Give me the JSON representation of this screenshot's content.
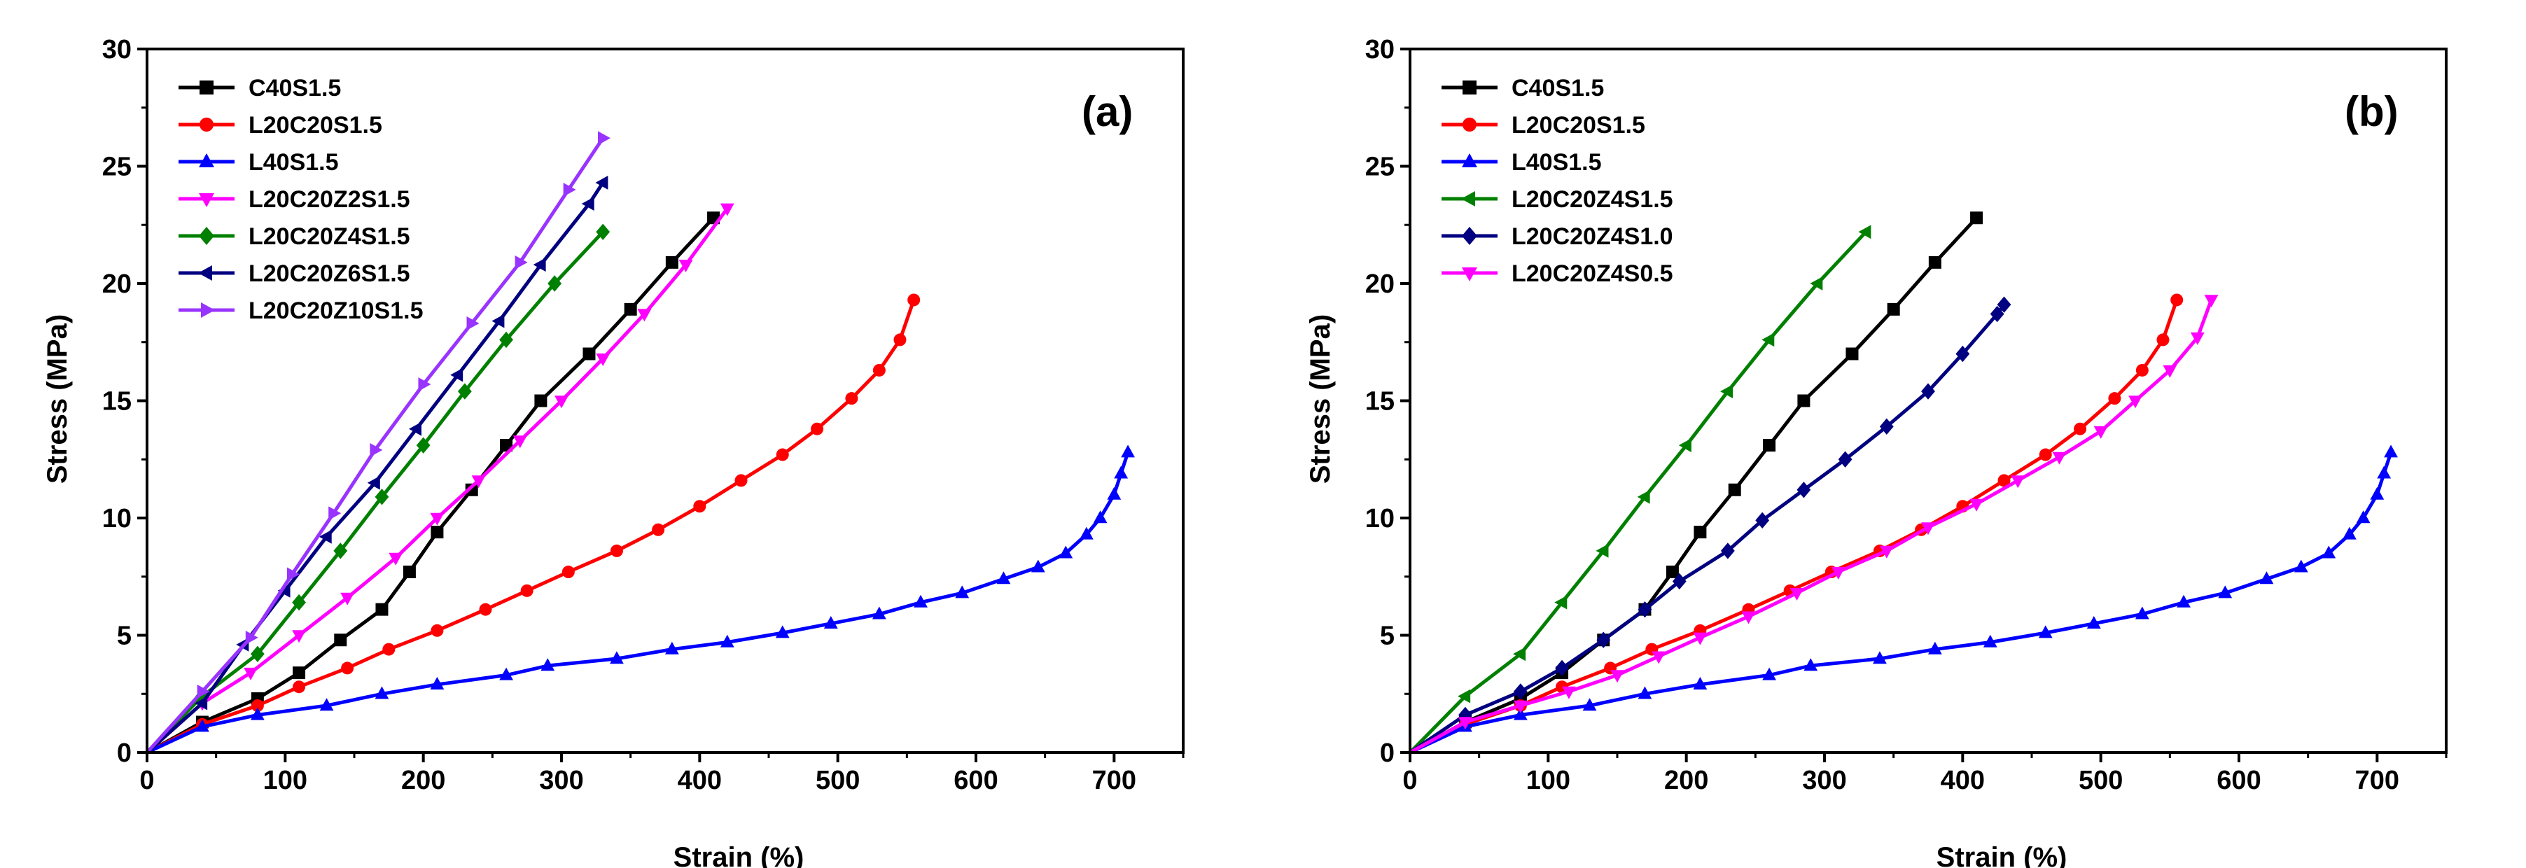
{
  "chart_data": [
    {
      "type": "line",
      "panel_label": "(a)",
      "xlabel": "Strain (%)",
      "ylabel": "Stress (MPa)",
      "xlim": [
        0,
        750
      ],
      "ylim": [
        0,
        30
      ],
      "xticks": [
        0,
        100,
        200,
        300,
        400,
        500,
        600,
        700
      ],
      "yticks": [
        0,
        5,
        10,
        15,
        20,
        25,
        30
      ],
      "legend_position": "top-left",
      "series": [
        {
          "name": "C40S1.5",
          "color": "#000000",
          "marker": "square",
          "points": [
            [
              0,
              0
            ],
            [
              40,
              1.3
            ],
            [
              80,
              2.3
            ],
            [
              110,
              3.4
            ],
            [
              140,
              4.8
            ],
            [
              170,
              6.1
            ],
            [
              190,
              7.7
            ],
            [
              210,
              9.4
            ],
            [
              235,
              11.2
            ],
            [
              260,
              13.1
            ],
            [
              285,
              15.0
            ],
            [
              320,
              17.0
            ],
            [
              350,
              18.9
            ],
            [
              380,
              20.9
            ],
            [
              410,
              22.8
            ]
          ]
        },
        {
          "name": "L20C20S1.5",
          "color": "#ff0000",
          "marker": "circle",
          "points": [
            [
              0,
              0
            ],
            [
              40,
              1.2
            ],
            [
              80,
              2.0
            ],
            [
              110,
              2.8
            ],
            [
              145,
              3.6
            ],
            [
              175,
              4.4
            ],
            [
              210,
              5.2
            ],
            [
              245,
              6.1
            ],
            [
              275,
              6.9
            ],
            [
              305,
              7.7
            ],
            [
              340,
              8.6
            ],
            [
              370,
              9.5
            ],
            [
              400,
              10.5
            ],
            [
              430,
              11.6
            ],
            [
              460,
              12.7
            ],
            [
              485,
              13.8
            ],
            [
              510,
              15.1
            ],
            [
              530,
              16.3
            ],
            [
              545,
              17.6
            ],
            [
              555,
              19.3
            ]
          ]
        },
        {
          "name": "L40S1.5",
          "color": "#0000ff",
          "marker": "triangle-up",
          "points": [
            [
              0,
              0
            ],
            [
              40,
              1.1
            ],
            [
              80,
              1.6
            ],
            [
              130,
              2.0
            ],
            [
              170,
              2.5
            ],
            [
              210,
              2.9
            ],
            [
              260,
              3.3
            ],
            [
              290,
              3.7
            ],
            [
              340,
              4.0
            ],
            [
              380,
              4.4
            ],
            [
              420,
              4.7
            ],
            [
              460,
              5.1
            ],
            [
              495,
              5.5
            ],
            [
              530,
              5.9
            ],
            [
              560,
              6.4
            ],
            [
              590,
              6.8
            ],
            [
              620,
              7.4
            ],
            [
              645,
              7.9
            ],
            [
              665,
              8.5
            ],
            [
              680,
              9.3
            ],
            [
              690,
              10.0
            ],
            [
              700,
              11.0
            ],
            [
              705,
              11.9
            ],
            [
              710,
              12.8
            ]
          ]
        },
        {
          "name": "L20C20Z2S1.5",
          "color": "#ff00ff",
          "marker": "triangle-down",
          "points": [
            [
              0,
              0
            ],
            [
              40,
              2.1
            ],
            [
              75,
              3.4
            ],
            [
              110,
              5.0
            ],
            [
              145,
              6.6
            ],
            [
              180,
              8.3
            ],
            [
              210,
              10.0
            ],
            [
              240,
              11.6
            ],
            [
              270,
              13.3
            ],
            [
              300,
              15.0
            ],
            [
              330,
              16.8
            ],
            [
              360,
              18.7
            ],
            [
              390,
              20.8
            ],
            [
              420,
              23.2
            ]
          ]
        },
        {
          "name": "L20C20Z4S1.5",
          "color": "#008000",
          "marker": "diamond",
          "points": [
            [
              0,
              0
            ],
            [
              40,
              2.4
            ],
            [
              80,
              4.2
            ],
            [
              110,
              6.4
            ],
            [
              140,
              8.6
            ],
            [
              170,
              10.9
            ],
            [
              200,
              13.1
            ],
            [
              230,
              15.4
            ],
            [
              260,
              17.6
            ],
            [
              295,
              20.0
            ],
            [
              330,
              22.2
            ]
          ]
        },
        {
          "name": "L20C20Z6S1.5",
          "color": "#000080",
          "marker": "triangle-left",
          "points": [
            [
              0,
              0
            ],
            [
              40,
              2.1
            ],
            [
              70,
              4.6
            ],
            [
              100,
              6.9
            ],
            [
              130,
              9.2
            ],
            [
              165,
              11.5
            ],
            [
              195,
              13.8
            ],
            [
              225,
              16.1
            ],
            [
              255,
              18.4
            ],
            [
              285,
              20.8
            ],
            [
              320,
              23.4
            ],
            [
              330,
              24.3
            ]
          ]
        },
        {
          "name": "L20C20Z10S1.5",
          "color": "#9933ff",
          "marker": "triangle-right",
          "points": [
            [
              0,
              0
            ],
            [
              40,
              2.6
            ],
            [
              75,
              4.9
            ],
            [
              105,
              7.6
            ],
            [
              135,
              10.2
            ],
            [
              165,
              12.9
            ],
            [
              200,
              15.7
            ],
            [
              235,
              18.3
            ],
            [
              270,
              20.9
            ],
            [
              305,
              24.0
            ],
            [
              330,
              26.2
            ]
          ]
        }
      ]
    },
    {
      "type": "line",
      "panel_label": "(b)",
      "xlabel": "Strain (%)",
      "ylabel": "Stress (MPa)",
      "xlim": [
        0,
        750
      ],
      "ylim": [
        0,
        30
      ],
      "xticks": [
        0,
        100,
        200,
        300,
        400,
        500,
        600,
        700
      ],
      "yticks": [
        0,
        5,
        10,
        15,
        20,
        25,
        30
      ],
      "legend_position": "top-left",
      "series": [
        {
          "name": "C40S1.5",
          "color": "#000000",
          "marker": "square",
          "points": [
            [
              0,
              0
            ],
            [
              40,
              1.3
            ],
            [
              80,
              2.3
            ],
            [
              110,
              3.4
            ],
            [
              140,
              4.8
            ],
            [
              170,
              6.1
            ],
            [
              190,
              7.7
            ],
            [
              210,
              9.4
            ],
            [
              235,
              11.2
            ],
            [
              260,
              13.1
            ],
            [
              285,
              15.0
            ],
            [
              320,
              17.0
            ],
            [
              350,
              18.9
            ],
            [
              380,
              20.9
            ],
            [
              410,
              22.8
            ]
          ]
        },
        {
          "name": "L20C20S1.5",
          "color": "#ff0000",
          "marker": "circle",
          "points": [
            [
              0,
              0
            ],
            [
              40,
              1.2
            ],
            [
              80,
              2.0
            ],
            [
              110,
              2.8
            ],
            [
              145,
              3.6
            ],
            [
              175,
              4.4
            ],
            [
              210,
              5.2
            ],
            [
              245,
              6.1
            ],
            [
              275,
              6.9
            ],
            [
              305,
              7.7
            ],
            [
              340,
              8.6
            ],
            [
              370,
              9.5
            ],
            [
              400,
              10.5
            ],
            [
              430,
              11.6
            ],
            [
              460,
              12.7
            ],
            [
              485,
              13.8
            ],
            [
              510,
              15.1
            ],
            [
              530,
              16.3
            ],
            [
              545,
              17.6
            ],
            [
              555,
              19.3
            ]
          ]
        },
        {
          "name": "L40S1.5",
          "color": "#0000ff",
          "marker": "triangle-up",
          "points": [
            [
              0,
              0
            ],
            [
              40,
              1.1
            ],
            [
              80,
              1.6
            ],
            [
              130,
              2.0
            ],
            [
              170,
              2.5
            ],
            [
              210,
              2.9
            ],
            [
              260,
              3.3
            ],
            [
              290,
              3.7
            ],
            [
              340,
              4.0
            ],
            [
              380,
              4.4
            ],
            [
              420,
              4.7
            ],
            [
              460,
              5.1
            ],
            [
              495,
              5.5
            ],
            [
              530,
              5.9
            ],
            [
              560,
              6.4
            ],
            [
              590,
              6.8
            ],
            [
              620,
              7.4
            ],
            [
              645,
              7.9
            ],
            [
              665,
              8.5
            ],
            [
              680,
              9.3
            ],
            [
              690,
              10.0
            ],
            [
              700,
              11.0
            ],
            [
              705,
              11.9
            ],
            [
              710,
              12.8
            ]
          ]
        },
        {
          "name": "L20C20Z4S1.5",
          "color": "#008000",
          "marker": "triangle-left",
          "points": [
            [
              0,
              0
            ],
            [
              40,
              2.4
            ],
            [
              80,
              4.2
            ],
            [
              110,
              6.4
            ],
            [
              140,
              8.6
            ],
            [
              170,
              10.9
            ],
            [
              200,
              13.1
            ],
            [
              230,
              15.4
            ],
            [
              260,
              17.6
            ],
            [
              295,
              20.0
            ],
            [
              330,
              22.2
            ]
          ]
        },
        {
          "name": "L20C20Z4S1.0",
          "color": "#000080",
          "marker": "diamond",
          "points": [
            [
              0,
              0
            ],
            [
              40,
              1.6
            ],
            [
              80,
              2.6
            ],
            [
              110,
              3.6
            ],
            [
              140,
              4.8
            ],
            [
              170,
              6.1
            ],
            [
              195,
              7.3
            ],
            [
              230,
              8.6
            ],
            [
              255,
              9.9
            ],
            [
              285,
              11.2
            ],
            [
              315,
              12.5
            ],
            [
              345,
              13.9
            ],
            [
              375,
              15.4
            ],
            [
              400,
              17.0
            ],
            [
              425,
              18.7
            ],
            [
              430,
              19.1
            ]
          ]
        },
        {
          "name": "L20C20Z4S0.5",
          "color": "#ff00ff",
          "marker": "triangle-down",
          "points": [
            [
              0,
              0
            ],
            [
              40,
              1.3
            ],
            [
              80,
              2.0
            ],
            [
              115,
              2.6
            ],
            [
              150,
              3.3
            ],
            [
              180,
              4.1
            ],
            [
              210,
              4.9
            ],
            [
              245,
              5.8
            ],
            [
              280,
              6.8
            ],
            [
              310,
              7.7
            ],
            [
              345,
              8.6
            ],
            [
              375,
              9.6
            ],
            [
              410,
              10.6
            ],
            [
              440,
              11.6
            ],
            [
              470,
              12.6
            ],
            [
              500,
              13.7
            ],
            [
              525,
              15.0
            ],
            [
              550,
              16.3
            ],
            [
              570,
              17.7
            ],
            [
              580,
              19.3
            ]
          ]
        }
      ]
    }
  ]
}
